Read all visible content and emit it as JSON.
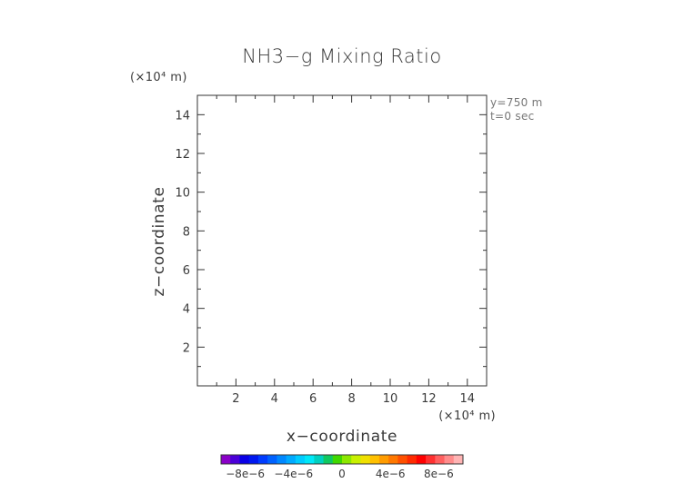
{
  "chart_data": {
    "type": "heatmap",
    "title": "NH3−g Mixing Ratio",
    "xlabel": "x−coordinate",
    "ylabel": "z−coordinate",
    "x_unit_label": "(×10⁴ m)",
    "y_unit_label": "(×10⁴ m)",
    "xlim": [
      0,
      15
    ],
    "ylim": [
      0,
      15
    ],
    "x_ticks": [
      2,
      4,
      6,
      8,
      10,
      12,
      14
    ],
    "y_ticks": [
      2,
      4,
      6,
      8,
      10,
      12,
      14
    ],
    "annotations": [
      "y=750 m",
      "t=0 sec"
    ],
    "values": [],
    "grid": false,
    "colorbar": {
      "range": [
        -1e-05,
        1e-05
      ],
      "tick_labels": [
        "−8e−6",
        "−4e−6",
        "0",
        "4e−6",
        "8e−6"
      ],
      "tick_values": [
        -8e-06,
        -4e-06,
        0,
        4e-06,
        8e-06
      ],
      "colors": [
        "#8a00c8",
        "#4b00d8",
        "#0a00e6",
        "#0018f0",
        "#003cff",
        "#0062ff",
        "#0088ff",
        "#00aaff",
        "#00ccff",
        "#00e8f8",
        "#00d0c0",
        "#10c860",
        "#40d800",
        "#8ce800",
        "#c8f000",
        "#f0e000",
        "#ffc000",
        "#ff9c00",
        "#ff7800",
        "#ff5000",
        "#ff2a00",
        "#ff0000",
        "#ff3030",
        "#ff6060",
        "#ff8c8c",
        "#ffb4b4"
      ]
    }
  }
}
